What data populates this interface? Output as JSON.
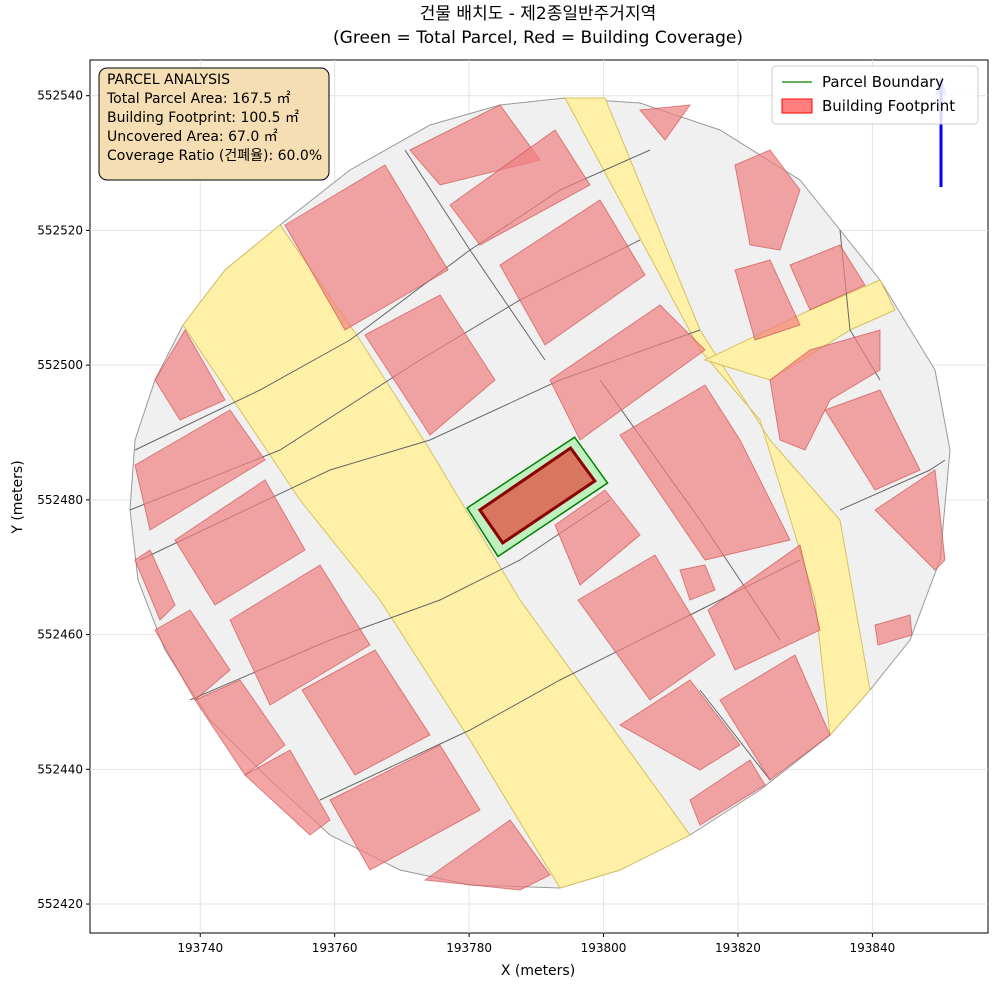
{
  "chart_data": {
    "type": "map",
    "title": "건물 배치도 - 제2종일반주거지역",
    "subtitle": "(Green = Total Parcel, Red = Building Coverage)",
    "x_label": "X (meters)",
    "y_label": "Y (meters)",
    "xlim": [
      193723.6,
      193857.2
    ],
    "ylim": [
      552415.7,
      552545.3
    ],
    "xticks": [
      193740,
      193760,
      193780,
      193800,
      193820,
      193840
    ],
    "yticks": [
      552420,
      552440,
      552460,
      552480,
      552500,
      552520,
      552540
    ],
    "grid": true,
    "legend": "upper right",
    "series": [
      {
        "name": "Parcel Boundary",
        "color": "#008000",
        "x": [
          193779.7,
          193795.7,
          193800.6,
          193784.3
        ],
        "y": [
          552478.8,
          552489.3,
          552482.5,
          552471.6
        ]
      },
      {
        "name": "Building Footprint",
        "color": "#ff0000",
        "x": [
          193781.6,
          193795.1,
          193798.7,
          193785.0
        ],
        "y": [
          552478.5,
          552487.7,
          552482.8,
          552473.6
        ]
      }
    ],
    "annotation": {
      "title": "PARCEL ANALYSIS",
      "lines": [
        "Total Parcel Area: 167.5 ㎡",
        "Building Footprint: 100.5 ㎡",
        "Uncovered Area: 67.0 ㎡",
        "Coverage Ratio (건폐율): 60.0%"
      ]
    }
  }
}
